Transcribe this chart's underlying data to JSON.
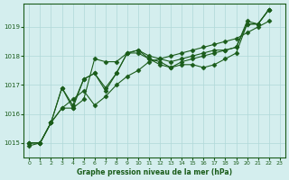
{
  "background_color": "#d4eeee",
  "grid_color": "#b0d8d8",
  "line_color": "#1a5c1a",
  "marker_color": "#1a5c1a",
  "title": "Graphe pression niveau de la mer (hPa)",
  "xlabel": "",
  "ylim": [
    1014.5,
    1019.8
  ],
  "xlim": [
    -0.5,
    23.5
  ],
  "yticks": [
    1015,
    1016,
    1017,
    1018,
    1019
  ],
  "xticks": [
    0,
    1,
    2,
    3,
    4,
    5,
    6,
    7,
    8,
    9,
    10,
    11,
    12,
    13,
    14,
    15,
    16,
    17,
    18,
    19,
    20,
    21,
    22,
    23
  ],
  "series": [
    [
      1015.0,
      1015.0,
      1015.7,
      1016.2,
      1016.2,
      1016.5,
      1017.9,
      1017.8,
      1017.8,
      1018.1,
      1018.1,
      1017.9,
      1017.8,
      1017.6,
      1017.7,
      1017.7,
      1017.6,
      1017.7,
      1017.9,
      1018.1,
      1019.1,
      1019.1,
      1019.6
    ],
    [
      1015.0,
      1015.0,
      1015.7,
      1016.2,
      1016.5,
      1016.8,
      1016.3,
      1016.6,
      1017.0,
      1017.3,
      1017.5,
      1017.8,
      1017.9,
      1018.0,
      1018.1,
      1018.2,
      1018.3,
      1018.4,
      1018.5,
      1018.6,
      1018.8,
      1019.0,
      1019.2
    ],
    [
      1015.0,
      1015.0,
      1015.7,
      1016.9,
      1016.3,
      1017.2,
      1017.4,
      1016.8,
      1017.4,
      1018.1,
      1018.2,
      1018.0,
      1017.9,
      1017.8,
      1017.9,
      1018.0,
      1018.1,
      1018.2,
      1018.2,
      1018.3,
      1019.1,
      1019.1,
      1019.6
    ],
    [
      1014.9,
      1015.0,
      1015.7,
      1016.9,
      1016.2,
      1017.2,
      1017.4,
      1016.9,
      1017.4,
      1018.1,
      1018.2,
      1017.9,
      1017.7,
      1017.6,
      1017.8,
      1017.9,
      1018.0,
      1018.1,
      1018.2,
      1018.3,
      1019.2,
      1019.1,
      1019.6
    ]
  ]
}
